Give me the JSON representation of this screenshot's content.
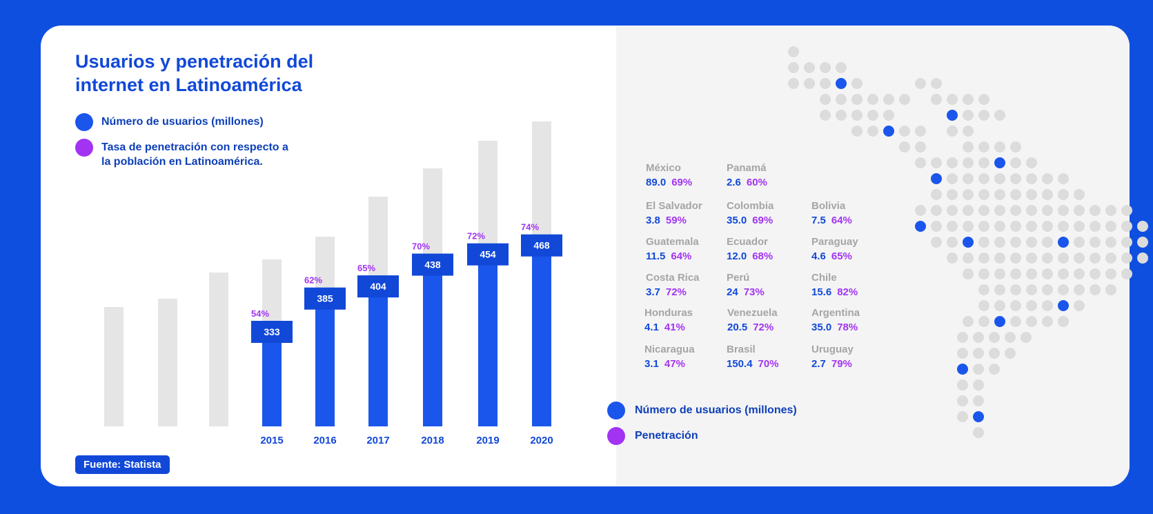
{
  "title": "Usuarios y penetración del internet en Latinoamérica",
  "legend": [
    {
      "label": "Número de usuarios (millones)",
      "color": "#1a56eb"
    },
    {
      "label": "Tasa de penetración con respecto a la población en Latinoamérica.",
      "color": "#a233f2"
    }
  ],
  "source": "Fuente: Statista",
  "chart_data": {
    "type": "bar",
    "categories": [
      "",
      "",
      "",
      "2015",
      "2016",
      "2017",
      "2018",
      "2019",
      "2020"
    ],
    "series": [
      {
        "name": "Número de usuarios (millones)",
        "values": [
          null,
          null,
          null,
          333,
          385,
          404,
          438,
          454,
          468
        ]
      },
      {
        "name": "Tasa de penetración con respecto a la población en Latinoamérica.",
        "values": [
          null,
          null,
          null,
          54,
          62,
          65,
          70,
          72,
          74
        ],
        "unit": "%"
      }
    ],
    "background_bars": "grey total-height bars behind each category",
    "colors": {
      "users": "#1a56eb",
      "users_label_box": "#1148d8",
      "penetration": "#a233f2",
      "background_bar": "#e5e5e5"
    }
  },
  "countries": [
    {
      "name": "México",
      "users": "89.0",
      "penetration": "69%"
    },
    {
      "name": "El Salvador",
      "users": "3.8",
      "penetration": "59%"
    },
    {
      "name": "Guatemala",
      "users": "11.5",
      "penetration": "64%"
    },
    {
      "name": "Costa Rica",
      "users": "3.7",
      "penetration": "72%"
    },
    {
      "name": "Honduras",
      "users": "4.1",
      "penetration": "41%"
    },
    {
      "name": "Nicaragua",
      "users": "3.1",
      "penetration": "47%"
    },
    {
      "name": "Panamá",
      "users": "2.6",
      "penetration": "60%"
    },
    {
      "name": "Colombia",
      "users": "35.0",
      "penetration": "69%"
    },
    {
      "name": "Ecuador",
      "users": "12.0",
      "penetration": "68%"
    },
    {
      "name": "Perú",
      "users": "24",
      "penetration": "73%"
    },
    {
      "name": "Venezuela",
      "users": "20.5",
      "penetration": "72%"
    },
    {
      "name": "Brasil",
      "users": "150.4",
      "penetration": "70%"
    },
    {
      "name": "Bolivia",
      "users": "7.5",
      "penetration": "64%"
    },
    {
      "name": "Paraguay",
      "users": "4.6",
      "penetration": "65%"
    },
    {
      "name": "Chile",
      "users": "15.6",
      "penetration": "82%"
    },
    {
      "name": "Argentina",
      "users": "35.0",
      "penetration": "78%"
    },
    {
      "name": "Uruguay",
      "users": "2.7",
      "penetration": "79%"
    }
  ],
  "map_legend": [
    {
      "label": "Número de usuarios (millones)",
      "color": "#1a56eb"
    },
    {
      "label": "Penetración",
      "color": "#a233f2"
    }
  ],
  "map": {
    "icon": "latin-america-dot-map",
    "dot_color": "#dcdcdc",
    "highlight_color": "#1a56eb"
  }
}
